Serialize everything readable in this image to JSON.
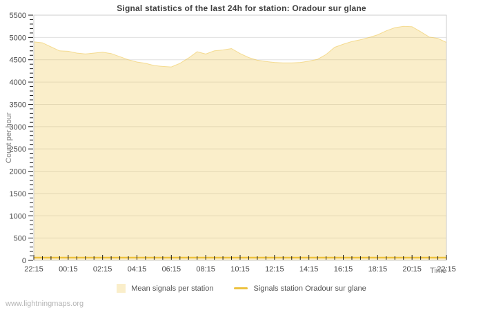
{
  "title": "Signal statistics of the last 24h for station: Oradour sur glane",
  "watermark": "www.lightningmaps.org",
  "legend": {
    "position": "bottom-center",
    "items": [
      {
        "label": "Mean signals per station",
        "swatch": "area-swatch"
      },
      {
        "label": "Signals station Oradour sur glane",
        "swatch": "line-swatch"
      }
    ]
  },
  "colors": {
    "accent": "#edc240",
    "area_fill": "rgba(237,194,64,0.28)",
    "area_edge": "rgba(237,194,64,0.5)",
    "grid": "#e0e0e0",
    "border": "#cccccc",
    "title_text": "#404040",
    "tick_text": "#444444",
    "axis_label_text": "#7f7f7f",
    "legend_text": "#545454",
    "watermark_text": "#b4b4b4",
    "tick_mark": "#1a1a1a"
  },
  "chart_data": {
    "type": "area",
    "title": "Signal statistics of the last 24h for station: Oradour sur glane",
    "xlabel": "Time",
    "ylabel": "Count per hour",
    "ylim": [
      0,
      5500
    ],
    "y_tick_step": 500,
    "y_minor_tick_step": 100,
    "y_tick_labels": [
      "0",
      "500",
      "1000",
      "1500",
      "2000",
      "2500",
      "3000",
      "3500",
      "4000",
      "4500",
      "5000",
      "5500"
    ],
    "x_range_hours": 24,
    "x_major_tick_interval_hours": 2,
    "x_minor_tick_interval_hours": 0.5,
    "x_major_tick_labels": [
      "22:15",
      "00:15",
      "02:15",
      "04:15",
      "06:15",
      "08:15",
      "10:15",
      "12:15",
      "14:15",
      "16:15",
      "18:15",
      "20:15",
      "22:15"
    ],
    "grid": "horizontal-only",
    "legend_position": "bottom-center",
    "series": [
      {
        "name": "Mean signals per station",
        "type": "area",
        "color": "#edc240",
        "sample_interval_hours": 0.5,
        "values": [
          4900,
          4880,
          4790,
          4700,
          4690,
          4650,
          4630,
          4650,
          4670,
          4640,
          4570,
          4500,
          4450,
          4420,
          4370,
          4350,
          4340,
          4420,
          4540,
          4680,
          4630,
          4700,
          4720,
          4750,
          4640,
          4550,
          4490,
          4460,
          4440,
          4430,
          4430,
          4440,
          4470,
          4510,
          4620,
          4780,
          4850,
          4910,
          4950,
          5000,
          5060,
          5150,
          5220,
          5250,
          5240,
          5130,
          5010,
          4980,
          4890
        ]
      },
      {
        "name": "Signals station Oradour sur glane",
        "type": "line",
        "color": "#edc240",
        "sample_interval_hours": 24,
        "values": [
          0,
          0
        ]
      }
    ]
  }
}
